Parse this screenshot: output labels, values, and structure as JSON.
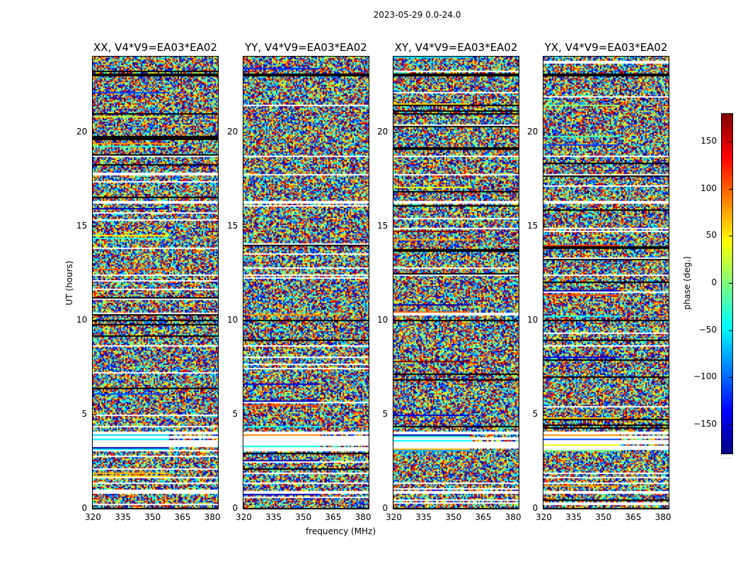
{
  "chart_data": {
    "type": "heatmap",
    "title": "2023-05-29 0.0-24.0",
    "xlabel": "frequency (MHz)",
    "ylabel": "UT (hours)",
    "xlim": [
      320,
      383
    ],
    "ylim": [
      0,
      24
    ],
    "xticks": [
      "320",
      "335",
      "350",
      "365",
      "380"
    ],
    "yticks": [
      "0",
      "5",
      "10",
      "15",
      "20"
    ],
    "panels": [
      {
        "title": "XX, V4*V9=EA03*EA02"
      },
      {
        "title": "YY, V4*V9=EA03*EA02"
      },
      {
        "title": "XY, V4*V9=EA03*EA02"
      },
      {
        "title": "YX, V4*V9=EA03*EA02"
      }
    ],
    "colorbar": {
      "label": "phase (deg.)",
      "colormap": "jet",
      "range": [
        -180,
        180
      ],
      "ticks": [
        "150",
        "100",
        "50",
        "0",
        "−50",
        "−100",
        "−150"
      ],
      "tick_values": [
        150,
        100,
        50,
        0,
        -50,
        -100,
        -150
      ],
      "extra_marks": "......"
    },
    "flagged_gaps_ut_hours": [
      [
        3.1,
        4.1
      ],
      [
        16.2,
        16.4
      ],
      [
        12.4,
        12.5
      ],
      [
        17.7,
        17.8
      ],
      [
        18.7,
        18.8
      ],
      [
        0.85,
        0.95
      ],
      [
        1.35,
        1.45
      ]
    ],
    "black_rows_ut_hours": [
      [
        23.0,
        23.1
      ],
      [
        4.1,
        4.15
      ],
      [
        0.0,
        0.05
      ],
      [
        10.0,
        10.05
      ],
      [
        18.0,
        18.05
      ]
    ]
  }
}
